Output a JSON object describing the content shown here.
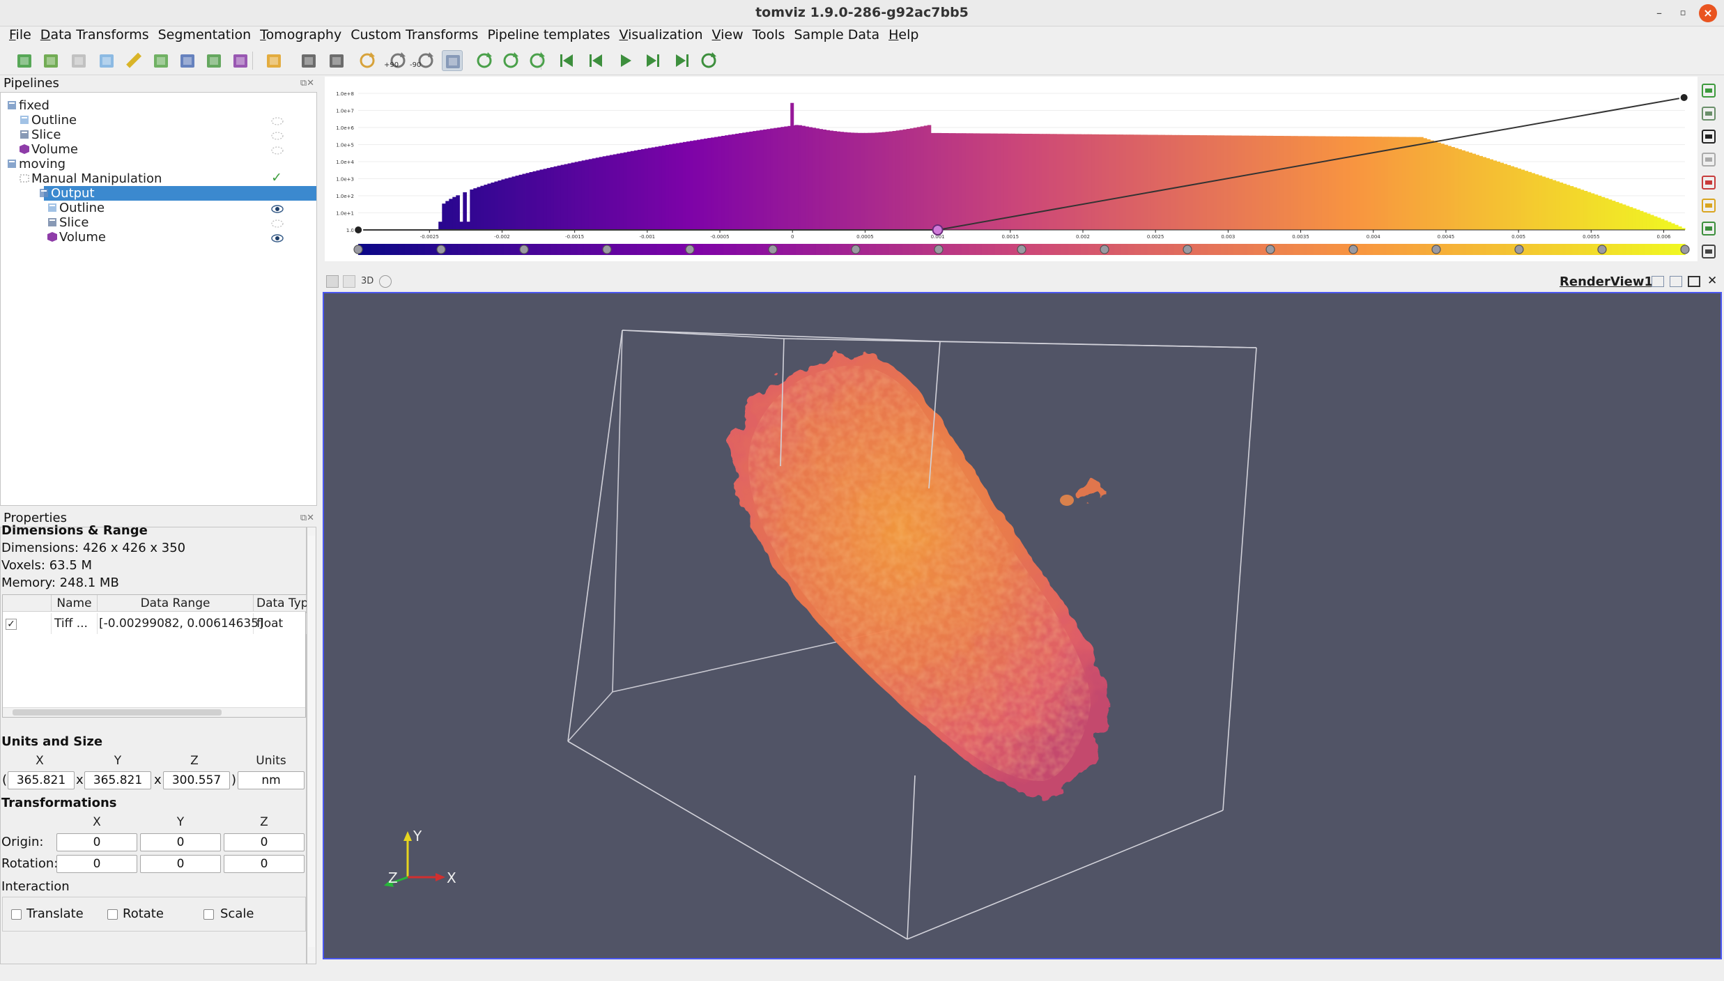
{
  "window": {
    "title": "tomviz 1.9.0-286-g92ac7bb5"
  },
  "menu": [
    {
      "label": "File",
      "mnemonic_index": 0
    },
    {
      "label": "Data Transforms",
      "mnemonic_index": 0
    },
    {
      "label": "Segmentation",
      "mnemonic_index": -1
    },
    {
      "label": "Tomography",
      "mnemonic_index": 0
    },
    {
      "label": "Custom Transforms",
      "mnemonic_index": -1
    },
    {
      "label": "Pipeline templates",
      "mnemonic_index": -1
    },
    {
      "label": "Visualization",
      "mnemonic_index": 0
    },
    {
      "label": "View",
      "mnemonic_index": 0
    },
    {
      "label": "Tools",
      "mnemonic_index": -1
    },
    {
      "label": "Sample Data",
      "mnemonic_index": -1
    },
    {
      "label": "Help",
      "mnemonic_index": 0
    }
  ],
  "toolbar": {
    "icons": [
      "open-data-icon",
      "load-sample-icon",
      "reset-icon",
      "outline-snowflake-icon",
      "ruler-icon",
      "slice-icon",
      "orthogonal-slice-icon",
      "contour-icon",
      "volume-icon",
      "palette-icon",
      "reset-camera-icon",
      "zoom-to-box-icon",
      "rotate-axis-icon",
      "rotate-plus90-icon",
      "rotate-minus90-icon",
      "interaction-mode-icon",
      "rotate-cw-icon",
      "rotate-ccw-icon",
      "cycle-icon",
      "first-frame-icon",
      "prev-frame-icon",
      "play-icon",
      "next-frame-icon",
      "last-frame-icon",
      "loop-icon"
    ],
    "rotate_plus_label": "+90",
    "rotate_minus_label": "-90"
  },
  "pipelines": {
    "title": "Pipelines",
    "items": [
      {
        "label": "fixed",
        "level": 0,
        "icon": "data-source-icon"
      },
      {
        "label": "Outline",
        "level": 1,
        "icon": "outline-icon",
        "visible": false
      },
      {
        "label": "Slice",
        "level": 1,
        "icon": "slice-icon",
        "visible": false
      },
      {
        "label": "Volume",
        "level": 1,
        "icon": "volume-icon",
        "visible": false
      },
      {
        "label": "moving",
        "level": 0,
        "icon": "data-source-icon"
      },
      {
        "label": "Manual Manipulation",
        "level": 1,
        "icon": "transform-icon",
        "status": "check"
      },
      {
        "label": "Output",
        "level": 2,
        "icon": "data-source-icon",
        "selected": true
      },
      {
        "label": "Outline",
        "level": 3,
        "icon": "outline-icon",
        "visible": true
      },
      {
        "label": "Slice",
        "level": 3,
        "icon": "slice-icon",
        "visible": false
      },
      {
        "label": "Volume",
        "level": 3,
        "icon": "volume-icon",
        "visible": true
      }
    ]
  },
  "properties": {
    "title": "Properties",
    "section_cut": "Dimensions & Range",
    "dimensions": "Dimensions: 426 x 426 x 350",
    "voxels": "Voxels: 63.5 M",
    "memory": "Memory: 248.1 MB",
    "table": {
      "headers": [
        "",
        "Name",
        "Data Range",
        "Data Typ"
      ],
      "rows": [
        {
          "checked": true,
          "check_glyph": "✓",
          "name": "Tiff ...",
          "range": "[-0.00299082, 0.00614635]",
          "type": "float"
        }
      ]
    },
    "units_and_size": {
      "title": "Units and Size",
      "headers": [
        "X",
        "Y",
        "Z",
        "Units"
      ],
      "x": "365.821",
      "y": "365.821",
      "z": "300.557",
      "units": "nm",
      "open_paren": "(",
      "sep1": "x",
      "sep2": "x",
      "close_paren": ")"
    },
    "transformations": {
      "title": "Transformations",
      "headers": [
        "X",
        "Y",
        "Z"
      ],
      "origin_label": "Origin:",
      "origin": [
        "0",
        "0",
        "0"
      ],
      "rotation_label": "Rotation:",
      "rotation": [
        "0",
        "0",
        "0"
      ]
    },
    "interaction": {
      "title": "Interaction",
      "options": [
        {
          "label": "Translate",
          "checked": false
        },
        {
          "label": "Rotate",
          "checked": false
        },
        {
          "label": "Scale",
          "checked": false
        }
      ]
    }
  },
  "histogram": {
    "colormap": "plasma",
    "x_ticks": [
      "-0.0025",
      "-0.002",
      "-0.0015",
      "-0.001",
      "-0.0005",
      "0",
      "0.0005",
      "0.001",
      "0.0015",
      "0.002",
      "0.0025",
      "0.003",
      "0.0035",
      "0.004",
      "0.0045",
      "0.005",
      "0.0055",
      "0.006"
    ],
    "y_ticks": [
      "1.0e+8",
      "1.0e+7",
      "1.0e+6",
      "1.0e+5",
      "1.0e+4",
      "1.0e+3",
      "1.0e+2",
      "1.0e+1",
      "1.0"
    ],
    "opacity_points": [
      [
        -0.00299,
        0.0
      ],
      [
        0.001,
        0.0
      ],
      [
        0.00614,
        1.0
      ]
    ]
  },
  "render_view": {
    "title": "RenderView1",
    "mode_label": "3D",
    "background": "#515466",
    "axes": {
      "x": "X",
      "y": "Y",
      "z": "Z"
    }
  },
  "colors": {
    "selection": "#3b89cf",
    "render_border": "#4a57f0",
    "close_button": "#e95420"
  }
}
